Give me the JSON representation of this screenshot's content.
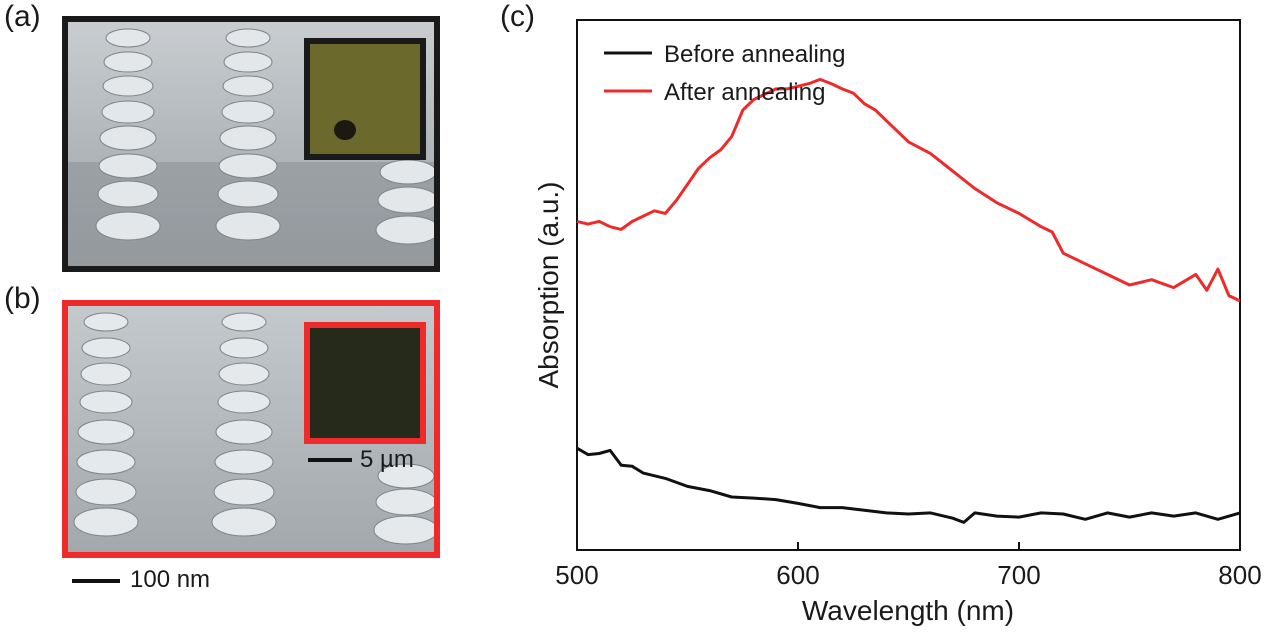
{
  "panels": {
    "a": {
      "label": "(a)",
      "frame_color": "#1a1a1a",
      "inset_color": "#6b6a2c"
    },
    "b": {
      "label": "(b)",
      "frame_color": "#ee2a2a",
      "inset_color": "#262a1a",
      "inset_scale": "5 µm"
    },
    "c": {
      "label": "(c)"
    }
  },
  "sem_scale": "100 nm",
  "chart_data": {
    "type": "line",
    "xlabel": "Wavelength (nm)",
    "ylabel": "Absorption (a.u.)",
    "xlim": [
      500,
      800
    ],
    "ylim": [
      0,
      1
    ],
    "xticks": [
      500,
      600,
      700,
      800
    ],
    "xtick_labels": [
      "500",
      "600",
      "700",
      "800"
    ],
    "yticks_shown": false,
    "grid": false,
    "legend_position": "top-left",
    "series": [
      {
        "name": "Before annealing",
        "color": "#111111",
        "x": [
          500,
          505,
          510,
          515,
          520,
          525,
          530,
          540,
          550,
          560,
          570,
          580,
          590,
          600,
          610,
          620,
          630,
          640,
          650,
          660,
          670,
          675,
          680,
          690,
          700,
          710,
          720,
          730,
          740,
          750,
          760,
          770,
          780,
          790,
          800
        ],
        "y": [
          0.192,
          0.18,
          0.182,
          0.188,
          0.16,
          0.158,
          0.145,
          0.135,
          0.12,
          0.112,
          0.1,
          0.098,
          0.095,
          0.088,
          0.08,
          0.08,
          0.075,
          0.07,
          0.068,
          0.07,
          0.06,
          0.052,
          0.07,
          0.064,
          0.062,
          0.07,
          0.068,
          0.058,
          0.07,
          0.062,
          0.07,
          0.064,
          0.07,
          0.058,
          0.07
        ]
      },
      {
        "name": "After annealing",
        "color": "#ee2a2a",
        "x": [
          500,
          505,
          510,
          515,
          520,
          525,
          530,
          535,
          540,
          545,
          550,
          555,
          560,
          565,
          570,
          575,
          580,
          585,
          590,
          595,
          600,
          605,
          610,
          615,
          620,
          625,
          630,
          635,
          640,
          645,
          650,
          660,
          670,
          680,
          690,
          700,
          710,
          715,
          720,
          730,
          740,
          750,
          760,
          770,
          780,
          785,
          790,
          795,
          800
        ],
        "y": [
          0.62,
          0.615,
          0.62,
          0.61,
          0.605,
          0.62,
          0.63,
          0.64,
          0.635,
          0.66,
          0.69,
          0.72,
          0.74,
          0.755,
          0.78,
          0.83,
          0.85,
          0.86,
          0.87,
          0.87,
          0.875,
          0.88,
          0.888,
          0.88,
          0.87,
          0.862,
          0.842,
          0.83,
          0.81,
          0.79,
          0.77,
          0.748,
          0.715,
          0.682,
          0.655,
          0.635,
          0.61,
          0.6,
          0.56,
          0.54,
          0.52,
          0.5,
          0.51,
          0.495,
          0.52,
          0.49,
          0.53,
          0.48,
          0.47
        ]
      }
    ]
  }
}
